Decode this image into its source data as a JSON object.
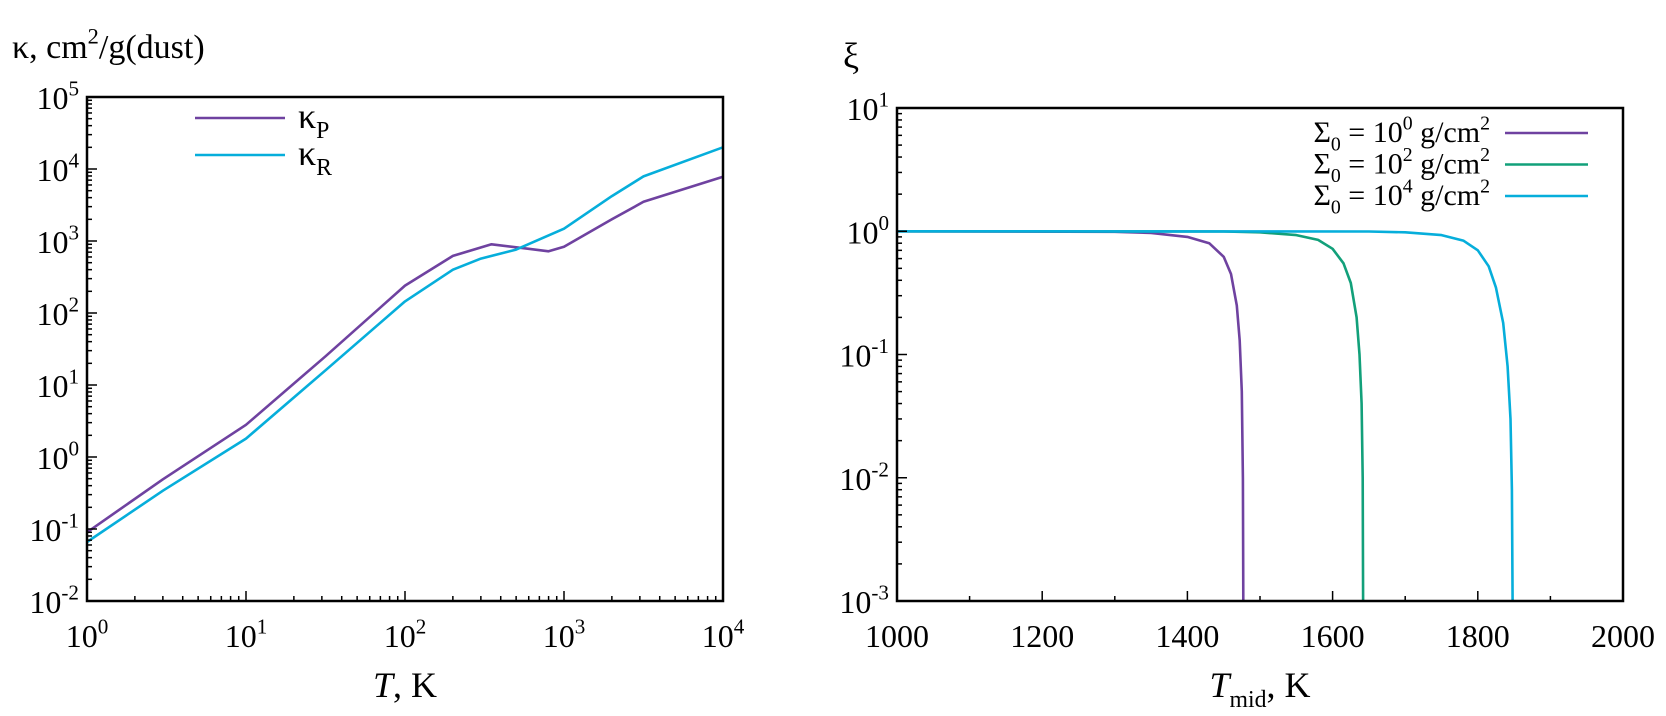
{
  "chart_data": [
    {
      "type": "line",
      "ylabel": "κ, cm^{2}/g(dust)",
      "xlabel": "*{T}, K",
      "xscale": "log",
      "yscale": "log",
      "xlim": [
        1,
        10000
      ],
      "ylim": [
        0.01,
        100000
      ],
      "xticks": [
        "10^{0}",
        "10^{1}",
        "10^{2}",
        "10^{3}",
        "10^{4}"
      ],
      "yticks": [
        "10^{-2}",
        "10^{-1}",
        "10^{0}",
        "10^{1}",
        "10^{2}",
        "10^{3}",
        "10^{4}",
        "10^{5}"
      ],
      "grid": false,
      "legend": "top-left",
      "series": [
        {
          "name": "κ_{P}",
          "color": "#6f42a0",
          "x": [
            1,
            3,
            10,
            31.6,
            100,
            200,
            350,
            600,
            800,
            1000,
            2000,
            3160,
            10000
          ],
          "y": [
            0.09,
            0.49,
            2.8,
            25,
            240,
            620,
            900,
            780,
            720,
            830,
            2000,
            3500,
            7800
          ]
        },
        {
          "name": "κ_{R}",
          "color": "#06aedb",
          "x": [
            1,
            3,
            10,
            31.6,
            100,
            200,
            300,
            500,
            1000,
            2000,
            3160,
            10000
          ],
          "y": [
            0.066,
            0.34,
            1.8,
            16,
            145,
            400,
            570,
            760,
            1480,
            4200,
            7900,
            20000
          ]
        }
      ]
    },
    {
      "type": "line",
      "ylabel": "ξ",
      "xlabel": "*{T}_{mid}, K",
      "xscale": "linear",
      "yscale": "log",
      "xlim": [
        1000,
        2000
      ],
      "ylim": [
        0.001,
        10
      ],
      "xticks": [
        "1000",
        "1200",
        "1400",
        "1600",
        "1800",
        "2000"
      ],
      "yticks": [
        "10^{-3}",
        "10^{-2}",
        "10^{-1}",
        "10^{0}",
        "10^{1}"
      ],
      "grid": false,
      "legend": "top-right",
      "series": [
        {
          "name": "Σ_{0} = 10^{0} g/cm^{2}",
          "color": "#6f42a0",
          "x": [
            1000,
            1300,
            1350,
            1400,
            1430,
            1450,
            1460,
            1468,
            1472,
            1475,
            1476.5,
            1477
          ],
          "y": [
            1,
            0.99,
            0.97,
            0.9,
            0.8,
            0.62,
            0.45,
            0.25,
            0.13,
            0.05,
            0.01,
            0.001
          ]
        },
        {
          "name": "Σ_{0} = 10^{2} g/cm^{2}",
          "color": "#12a07a",
          "x": [
            1000,
            1450,
            1500,
            1550,
            1580,
            1600,
            1615,
            1625,
            1633,
            1637,
            1640,
            1641.5,
            1642
          ],
          "y": [
            1,
            0.995,
            0.98,
            0.93,
            0.85,
            0.72,
            0.55,
            0.38,
            0.2,
            0.1,
            0.04,
            0.01,
            0.001
          ]
        },
        {
          "name": "Σ_{0} = 10^{4} g/cm^{2}",
          "color": "#06aedb",
          "x": [
            1000,
            1650,
            1700,
            1750,
            1780,
            1800,
            1815,
            1825,
            1835,
            1841,
            1845,
            1847,
            1848
          ],
          "y": [
            1,
            0.995,
            0.98,
            0.93,
            0.84,
            0.7,
            0.52,
            0.35,
            0.18,
            0.08,
            0.03,
            0.008,
            0.001
          ]
        }
      ]
    }
  ]
}
